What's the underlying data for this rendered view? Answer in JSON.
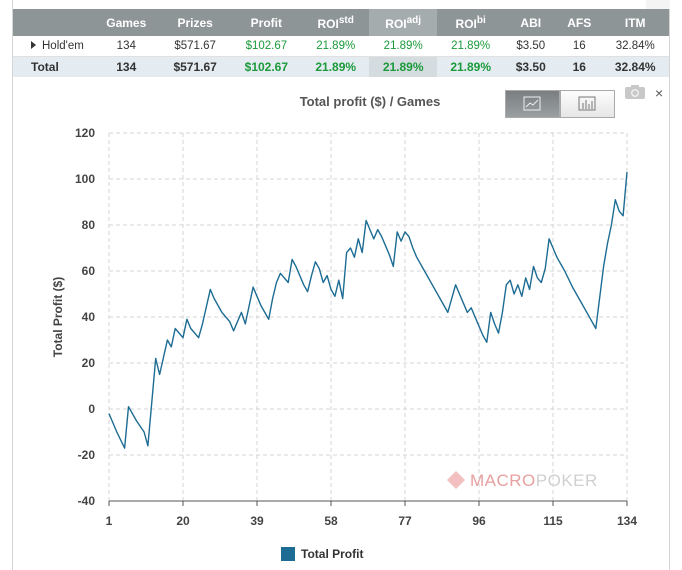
{
  "table": {
    "headers": [
      "",
      "Games",
      "Prizes",
      "Profit",
      "ROI",
      "ROI",
      "ROI",
      "ABI",
      "AFS",
      "ITM"
    ],
    "roi_sups": [
      "std",
      "adj",
      "bi"
    ],
    "rows": [
      {
        "label": "Hold'em",
        "games": "134",
        "prizes": "$571.67",
        "profit": "$102.67",
        "roi_std": "21.89%",
        "roi_adj": "21.89%",
        "roi_bi": "21.89%",
        "abi": "$3.50",
        "afs": "16",
        "itm": "32.84%"
      },
      {
        "label": "Total",
        "games": "134",
        "prizes": "$571.67",
        "profit": "$102.67",
        "roi_std": "21.89%",
        "roi_adj": "21.89%",
        "roi_bi": "21.89%",
        "abi": "$3.50",
        "afs": "16",
        "itm": "32.84%"
      }
    ]
  },
  "chart": {
    "title": "Total profit ($) / Games",
    "close_label": "×",
    "watermark_a": "MACRO",
    "watermark_b": "POKER",
    "legend": "Total Profit"
  },
  "chart_data": {
    "type": "line",
    "title": "Total profit ($) / Games",
    "xlabel": "",
    "ylabel": "Total Profit ($)",
    "xlim": [
      1,
      134
    ],
    "ylim": [
      -40,
      120
    ],
    "xticks": [
      1,
      20,
      39,
      58,
      77,
      96,
      115,
      134
    ],
    "yticks": [
      -40,
      -20,
      0,
      20,
      40,
      60,
      80,
      100,
      120
    ],
    "grid": true,
    "legend_position": "bottom",
    "series": [
      {
        "name": "Total Profit",
        "color": "#1d6c93",
        "x": [
          1,
          3,
          5,
          6,
          8,
          10,
          11,
          13,
          14,
          16,
          17,
          18,
          20,
          21,
          22,
          24,
          25,
          27,
          28,
          30,
          31,
          32,
          33,
          35,
          36,
          38,
          39,
          40,
          41,
          42,
          43,
          44,
          45,
          47,
          48,
          49,
          50,
          51,
          52,
          53,
          54,
          55,
          56,
          57,
          58,
          59,
          60,
          61,
          62,
          63,
          64,
          65,
          66,
          67,
          68,
          69,
          70,
          71,
          72,
          73,
          74,
          75,
          76,
          77,
          78,
          79,
          80,
          82,
          84,
          86,
          88,
          90,
          91,
          92,
          93,
          94,
          95,
          96,
          97,
          98,
          99,
          100,
          101,
          102,
          103,
          104,
          105,
          106,
          107,
          108,
          109,
          110,
          111,
          112,
          113,
          114,
          115,
          116,
          118,
          120,
          122,
          124,
          126,
          128,
          129,
          130,
          131,
          132,
          133,
          134
        ],
        "values": [
          -2,
          -10,
          -17,
          1,
          -5,
          -10,
          -16,
          22,
          15,
          30,
          27,
          35,
          31,
          39,
          35,
          31,
          37,
          52,
          48,
          42,
          40,
          38,
          34,
          42,
          37,
          53,
          49,
          45,
          42,
          39,
          48,
          55,
          59,
          55,
          65,
          62,
          58,
          54,
          51,
          58,
          64,
          61,
          55,
          58,
          52,
          49,
          56,
          48,
          68,
          70,
          66,
          74,
          68,
          82,
          78,
          74,
          78,
          75,
          71,
          67,
          62,
          77,
          73,
          77,
          75,
          70,
          66,
          60,
          54,
          48,
          42,
          54,
          50,
          46,
          42,
          44,
          40,
          36,
          32,
          29,
          42,
          37,
          33,
          42,
          54,
          56,
          50,
          54,
          49,
          57,
          52,
          62,
          57,
          55,
          61,
          74,
          70,
          66,
          60,
          53,
          47,
          41,
          35,
          62,
          72,
          80,
          91,
          86,
          84,
          103
        ]
      }
    ]
  }
}
